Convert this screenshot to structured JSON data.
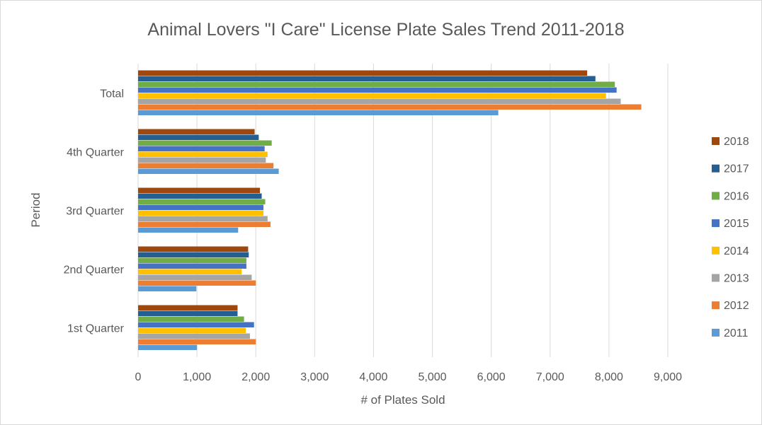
{
  "chart_data": {
    "type": "bar",
    "orientation": "horizontal",
    "title": "Animal Lovers \"I Care\" License Plate Sales Trend 2011-2018",
    "xlabel": "# of Plates Sold",
    "ylabel": "Period",
    "xlim": [
      0,
      9000
    ],
    "x_ticks": [
      "0",
      "1,000",
      "2,000",
      "3,000",
      "4,000",
      "5,000",
      "6,000",
      "7,000",
      "8,000",
      "9,000"
    ],
    "grid": "vertical",
    "legend_position": "right",
    "categories": [
      "1st Quarter",
      "2nd Quarter",
      "3rd Quarter",
      "4th Quarter",
      "Total"
    ],
    "series": [
      {
        "name": "2011",
        "color": "#5b9bd5",
        "values": [
          1000,
          990,
          1700,
          2390,
          6120
        ]
      },
      {
        "name": "2012",
        "color": "#ed7d31",
        "values": [
          2000,
          2000,
          2250,
          2300,
          8550
        ]
      },
      {
        "name": "2013",
        "color": "#a5a5a5",
        "values": [
          1900,
          1930,
          2200,
          2170,
          8200
        ]
      },
      {
        "name": "2014",
        "color": "#ffc000",
        "values": [
          1830,
          1760,
          2130,
          2200,
          7950
        ]
      },
      {
        "name": "2015",
        "color": "#4472c4",
        "values": [
          1970,
          1840,
          2130,
          2150,
          8130
        ]
      },
      {
        "name": "2016",
        "color": "#70ad47",
        "values": [
          1800,
          1840,
          2160,
          2270,
          8100
        ]
      },
      {
        "name": "2017",
        "color": "#255e91",
        "values": [
          1690,
          1880,
          2100,
          2050,
          7770
        ]
      },
      {
        "name": "2018",
        "color": "#9e480e",
        "values": [
          1690,
          1870,
          2070,
          1980,
          7630
        ]
      }
    ]
  }
}
